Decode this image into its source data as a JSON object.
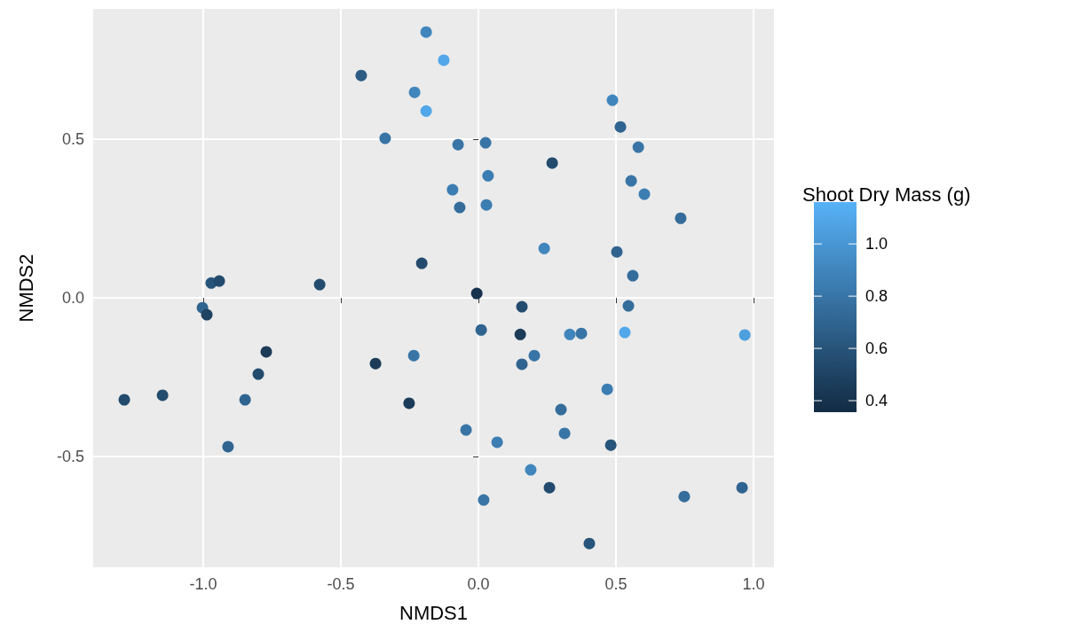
{
  "chart_data": {
    "type": "scatter",
    "xlabel": "NMDS1",
    "ylabel": "NMDS2",
    "clabel": "Shoot Dry Mass (g)",
    "xlim": [
      -1.4,
      1.074
    ],
    "ylim": [
      -0.849,
      0.911
    ],
    "xticks": [
      {
        "value": -1,
        "label": "-1.0"
      },
      {
        "value": -0.5,
        "label": "-0.5"
      },
      {
        "value": 0,
        "label": "0.0"
      },
      {
        "value": 0.5,
        "label": "0.5"
      },
      {
        "value": 1,
        "label": "1.0"
      }
    ],
    "yticks": [
      {
        "value": -0.5,
        "label": "-0.5"
      },
      {
        "value": 0,
        "label": "0.0"
      },
      {
        "value": 0.5,
        "label": "0.5"
      }
    ],
    "clim": [
      0.356,
      1.16
    ],
    "cticks": [
      {
        "value": 0.4,
        "label": "0.4"
      },
      {
        "value": 0.6,
        "label": "0.6"
      },
      {
        "value": 0.8,
        "label": "0.8"
      },
      {
        "value": 1,
        "label": "1.0"
      }
    ],
    "grid": true,
    "marker": "circle",
    "x": [
      -0.19,
      -0.126,
      -0.426,
      -0.232,
      -0.19,
      -0.339,
      -0.074,
      0.026,
      0.487,
      0.516,
      0.581,
      0.268,
      0.035,
      -0.094,
      -0.068,
      0.029,
      0.555,
      0.603,
      0.735,
      0.239,
      -0.206,
      0.503,
      0.561,
      -0.577,
      -0.971,
      -0.942,
      -1.003,
      -0.987,
      -0.006,
      0.158,
      0.545,
      0.01,
      0.152,
      0.332,
      0.374,
      0.532,
      0.968,
      -0.771,
      -0.374,
      -0.235,
      -0.8,
      0.158,
      0.203,
      -1.287,
      -1.148,
      -0.848,
      -0.252,
      0.468,
      0.3,
      -0.045,
      0.313,
      0.068,
      -0.91,
      0.481,
      0.19,
      0.258,
      0.019,
      0.748,
      0.958,
      0.403
    ],
    "values": [
      0.838,
      0.749,
      0.701,
      0.648,
      0.589,
      0.503,
      0.483,
      0.489,
      0.623,
      0.539,
      0.475,
      0.425,
      0.385,
      0.341,
      0.285,
      0.293,
      0.369,
      0.327,
      0.251,
      0.156,
      0.109,
      0.145,
      0.07,
      0.042,
      0.047,
      0.053,
      -0.031,
      -0.053,
      0.014,
      -0.028,
      -0.025,
      -0.101,
      -0.115,
      -0.115,
      -0.112,
      -0.109,
      -0.117,
      -0.17,
      -0.207,
      -0.182,
      -0.24,
      -0.209,
      -0.182,
      -0.321,
      -0.307,
      -0.321,
      -0.332,
      -0.288,
      -0.352,
      -0.416,
      -0.427,
      -0.455,
      -0.469,
      -0.464,
      -0.542,
      -0.598,
      -0.637,
      -0.626,
      -0.598,
      -0.774
    ],
    "cvalues": [
      0.9,
      1.1,
      0.65,
      0.9,
      1.1,
      0.8,
      0.8,
      0.8,
      0.9,
      0.7,
      0.8,
      0.55,
      0.85,
      0.85,
      0.75,
      0.85,
      0.8,
      0.85,
      0.75,
      0.9,
      0.55,
      0.7,
      0.75,
      0.55,
      0.6,
      0.55,
      0.7,
      0.5,
      0.4,
      0.55,
      0.75,
      0.7,
      0.45,
      0.9,
      0.8,
      1.1,
      1.05,
      0.45,
      0.45,
      0.8,
      0.55,
      0.7,
      0.8,
      0.55,
      0.55,
      0.7,
      0.45,
      0.85,
      0.75,
      0.8,
      0.8,
      0.85,
      0.7,
      0.6,
      0.9,
      0.55,
      0.8,
      0.75,
      0.7,
      0.6
    ]
  }
}
